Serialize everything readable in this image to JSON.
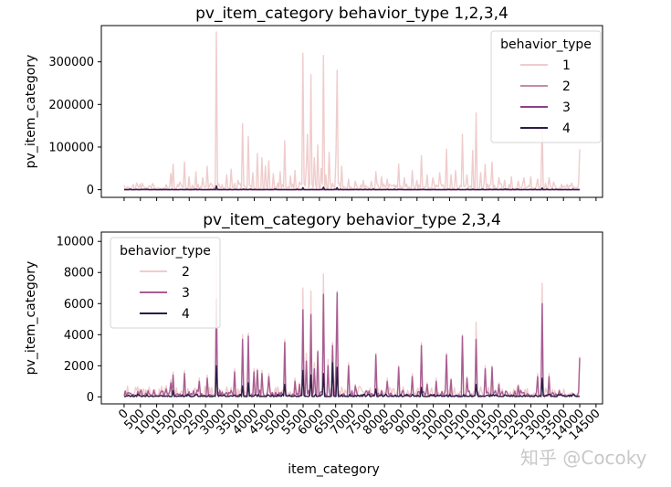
{
  "chart_data": [
    {
      "type": "line",
      "title": "pv_item_category behavior_type 1,2,3,4",
      "xlabel": "",
      "ylabel": "pv_item_category",
      "xlim": [
        -700,
        14700
      ],
      "ylim": [
        -18000,
        385000
      ],
      "yticks": [
        0,
        100000,
        200000,
        300000
      ],
      "ytick_labels": [
        "0",
        "100000",
        "200000",
        "300000"
      ],
      "legend": {
        "title": "behavior_type",
        "position": "top-right"
      },
      "series": [
        {
          "name": "1",
          "color": "#f0cccc",
          "baseline": 2000,
          "noise_max": 14000,
          "peaks": [
            [
              1300,
              12000
            ],
            [
              1450,
              38000
            ],
            [
              1500,
              60000
            ],
            [
              1700,
              18000
            ],
            [
              1850,
              65000
            ],
            [
              2000,
              30000
            ],
            [
              2200,
              42000
            ],
            [
              2400,
              28000
            ],
            [
              2550,
              55000
            ],
            [
              2650,
              15000
            ],
            [
              2837,
              370000
            ],
            [
              3000,
              12000
            ],
            [
              3150,
              35000
            ],
            [
              3300,
              48000
            ],
            [
              3500,
              22000
            ],
            [
              3650,
              155000
            ],
            [
              3800,
              125000
            ],
            [
              3950,
              40000
            ],
            [
              4100,
              85000
            ],
            [
              4250,
              75000
            ],
            [
              4350,
              55000
            ],
            [
              4450,
              68000
            ],
            [
              4600,
              38000
            ],
            [
              4800,
              42000
            ],
            [
              4950,
              115000
            ],
            [
              5100,
              32000
            ],
            [
              5250,
              45000
            ],
            [
              5400,
              18000
            ],
            [
              5500,
              320000
            ],
            [
              5600,
              55000
            ],
            [
              5650,
              130000
            ],
            [
              5750,
              270000
            ],
            [
              5850,
              75000
            ],
            [
              5950,
              105000
            ],
            [
              6050,
              50000
            ],
            [
              6120,
              315000
            ],
            [
              6200,
              35000
            ],
            [
              6300,
              88000
            ],
            [
              6400,
              15000
            ],
            [
              6500,
              80000
            ],
            [
              6560,
              280000
            ],
            [
              6700,
              55000
            ],
            [
              6900,
              25000
            ],
            [
              7100,
              20000
            ],
            [
              7350,
              22000
            ],
            [
              7600,
              20000
            ],
            [
              7750,
              42000
            ],
            [
              7900,
              30000
            ],
            [
              8100,
              25000
            ],
            [
              8300,
              12000
            ],
            [
              8450,
              60000
            ],
            [
              8600,
              28000
            ],
            [
              8850,
              45000
            ],
            [
              9000,
              22000
            ],
            [
              9150,
              80000
            ],
            [
              9300,
              35000
            ],
            [
              9500,
              28000
            ],
            [
              9700,
              40000
            ],
            [
              9900,
              95000
            ],
            [
              10050,
              35000
            ],
            [
              10200,
              45000
            ],
            [
              10400,
              130000
            ],
            [
              10550,
              35000
            ],
            [
              10700,
              92000
            ],
            [
              10800,
              180000
            ],
            [
              10950,
              40000
            ],
            [
              11100,
              60000
            ],
            [
              11300,
              65000
            ],
            [
              11500,
              28000
            ],
            [
              11700,
              22000
            ],
            [
              11900,
              30000
            ],
            [
              12100,
              20000
            ],
            [
              12300,
              28000
            ],
            [
              12500,
              30000
            ],
            [
              12700,
              25000
            ],
            [
              12850,
              160000
            ],
            [
              13050,
              28000
            ],
            [
              13200,
              18000
            ],
            [
              13600,
              12000
            ],
            [
              14000,
              95000
            ]
          ]
        },
        {
          "name": "2",
          "color": "#c48ca6",
          "baseline": 0,
          "noise_max": 0,
          "peaks": []
        },
        {
          "name": "3",
          "color": "#8e3f88",
          "baseline": 0,
          "noise_max": 0,
          "peaks": []
        },
        {
          "name": "4",
          "color": "#2b1d44",
          "baseline": 0,
          "noise_max": 1500,
          "peaks": [
            [
              2837,
              9000
            ],
            [
              5500,
              5000
            ],
            [
              6120,
              6000
            ],
            [
              6560,
              5000
            ],
            [
              12850,
              4000
            ]
          ]
        }
      ]
    },
    {
      "type": "line",
      "title": "pv_item_category behavior_type 2,3,4",
      "xlabel": "item_category",
      "ylabel": "pv_item_category",
      "xlim": [
        -700,
        14700
      ],
      "ylim": [
        -450,
        10600
      ],
      "yticks": [
        0,
        2000,
        4000,
        6000,
        8000,
        10000
      ],
      "ytick_labels": [
        "0",
        "2000",
        "4000",
        "6000",
        "8000",
        "10000"
      ],
      "xticks": [
        0,
        500,
        1000,
        1500,
        2000,
        2500,
        3000,
        3500,
        4000,
        4500,
        5000,
        5500,
        6000,
        6500,
        7000,
        7500,
        8000,
        8500,
        9000,
        9500,
        10000,
        10500,
        11000,
        11500,
        12000,
        12500,
        13000,
        13500,
        14000,
        14500
      ],
      "xtick_labels": [
        "0",
        "500",
        "1000",
        "1500",
        "2000",
        "2500",
        "3000",
        "3500",
        "4000",
        "4500",
        "5000",
        "5500",
        "6000",
        "6500",
        "7000",
        "7500",
        "8000",
        "8500",
        "9000",
        "9500",
        "10000",
        "10500",
        "11000",
        "11500",
        "12000",
        "12500",
        "13000",
        "13500",
        "14000",
        "14500"
      ],
      "legend": {
        "title": "behavior_type",
        "position": "top-left"
      },
      "series": [
        {
          "name": "2",
          "color": "#f0cccc",
          "baseline": 80,
          "noise_max": 600,
          "peaks": [
            [
              1300,
              700
            ],
            [
              1450,
              1100
            ],
            [
              1500,
              1600
            ],
            [
              1850,
              1700
            ],
            [
              2300,
              1200
            ],
            [
              2560,
              1400
            ],
            [
              2837,
              9000
            ],
            [
              3000,
              400
            ],
            [
              3400,
              1800
            ],
            [
              3650,
              4000
            ],
            [
              3800,
              4100
            ],
            [
              4000,
              1800
            ],
            [
              4100,
              1800
            ],
            [
              4250,
              1700
            ],
            [
              4450,
              1500
            ],
            [
              4950,
              3700
            ],
            [
              5250,
              1200
            ],
            [
              5400,
              900
            ],
            [
              5500,
              7000
            ],
            [
              5600,
              2800
            ],
            [
              5750,
              6800
            ],
            [
              5850,
              2200
            ],
            [
              5950,
              3000
            ],
            [
              6120,
              7900
            ],
            [
              6250,
              2400
            ],
            [
              6400,
              3500
            ],
            [
              6500,
              2100
            ],
            [
              6560,
              6800
            ],
            [
              6900,
              2200
            ],
            [
              7100,
              800
            ],
            [
              7750,
              2800
            ],
            [
              8100,
              1200
            ],
            [
              8450,
              2000
            ],
            [
              8850,
              1500
            ],
            [
              9150,
              3500
            ],
            [
              9300,
              900
            ],
            [
              9600,
              1200
            ],
            [
              9900,
              2800
            ],
            [
              10050,
              1200
            ],
            [
              10400,
              4000
            ],
            [
              10550,
              1300
            ],
            [
              10800,
              4800
            ],
            [
              11100,
              2000
            ],
            [
              11300,
              2000
            ],
            [
              11500,
              900
            ],
            [
              12100,
              800
            ],
            [
              12700,
              1500
            ],
            [
              12850,
              7300
            ],
            [
              13050,
              1500
            ],
            [
              14000,
              2600
            ]
          ]
        },
        {
          "name": "3",
          "color": "#a95d92",
          "baseline": 50,
          "noise_max": 400,
          "peaks": [
            [
              1300,
              500
            ],
            [
              1450,
              900
            ],
            [
              1500,
              1400
            ],
            [
              1850,
              1500
            ],
            [
              2300,
              1000
            ],
            [
              2560,
              1200
            ],
            [
              2837,
              6300
            ],
            [
              3000,
              300
            ],
            [
              3400,
              1600
            ],
            [
              3650,
              3700
            ],
            [
              3800,
              3900
            ],
            [
              4000,
              1600
            ],
            [
              4100,
              1700
            ],
            [
              4250,
              1500
            ],
            [
              4450,
              1300
            ],
            [
              4950,
              3500
            ],
            [
              5250,
              1000
            ],
            [
              5400,
              800
            ],
            [
              5500,
              5600
            ],
            [
              5600,
              2300
            ],
            [
              5750,
              5300
            ],
            [
              5850,
              1800
            ],
            [
              5950,
              2900
            ],
            [
              6120,
              6600
            ],
            [
              6250,
              2000
            ],
            [
              6400,
              3300
            ],
            [
              6500,
              1900
            ],
            [
              6560,
              6700
            ],
            [
              6900,
              2000
            ],
            [
              7100,
              700
            ],
            [
              7750,
              2700
            ],
            [
              8100,
              1000
            ],
            [
              8450,
              1900
            ],
            [
              8850,
              1300
            ],
            [
              9150,
              3300
            ],
            [
              9300,
              800
            ],
            [
              9600,
              1000
            ],
            [
              9900,
              2700
            ],
            [
              10050,
              1100
            ],
            [
              10400,
              3900
            ],
            [
              10550,
              1200
            ],
            [
              10800,
              3700
            ],
            [
              11100,
              1800
            ],
            [
              11300,
              1900
            ],
            [
              11500,
              800
            ],
            [
              12100,
              700
            ],
            [
              12700,
              1300
            ],
            [
              12850,
              6000
            ],
            [
              13050,
              1300
            ],
            [
              14000,
              2500
            ]
          ]
        },
        {
          "name": "4",
          "color": "#2b1d44",
          "baseline": 20,
          "noise_max": 150,
          "peaks": [
            [
              1500,
              400
            ],
            [
              2837,
              2000
            ],
            [
              3650,
              700
            ],
            [
              3800,
              900
            ],
            [
              4950,
              800
            ],
            [
              5500,
              1700
            ],
            [
              5750,
              1400
            ],
            [
              6120,
              1500
            ],
            [
              6400,
              2200
            ],
            [
              6560,
              1900
            ],
            [
              7750,
              500
            ],
            [
              9150,
              600
            ],
            [
              10800,
              800
            ],
            [
              12850,
              1200
            ]
          ]
        }
      ]
    }
  ],
  "watermark": "知乎 @Cocoky"
}
